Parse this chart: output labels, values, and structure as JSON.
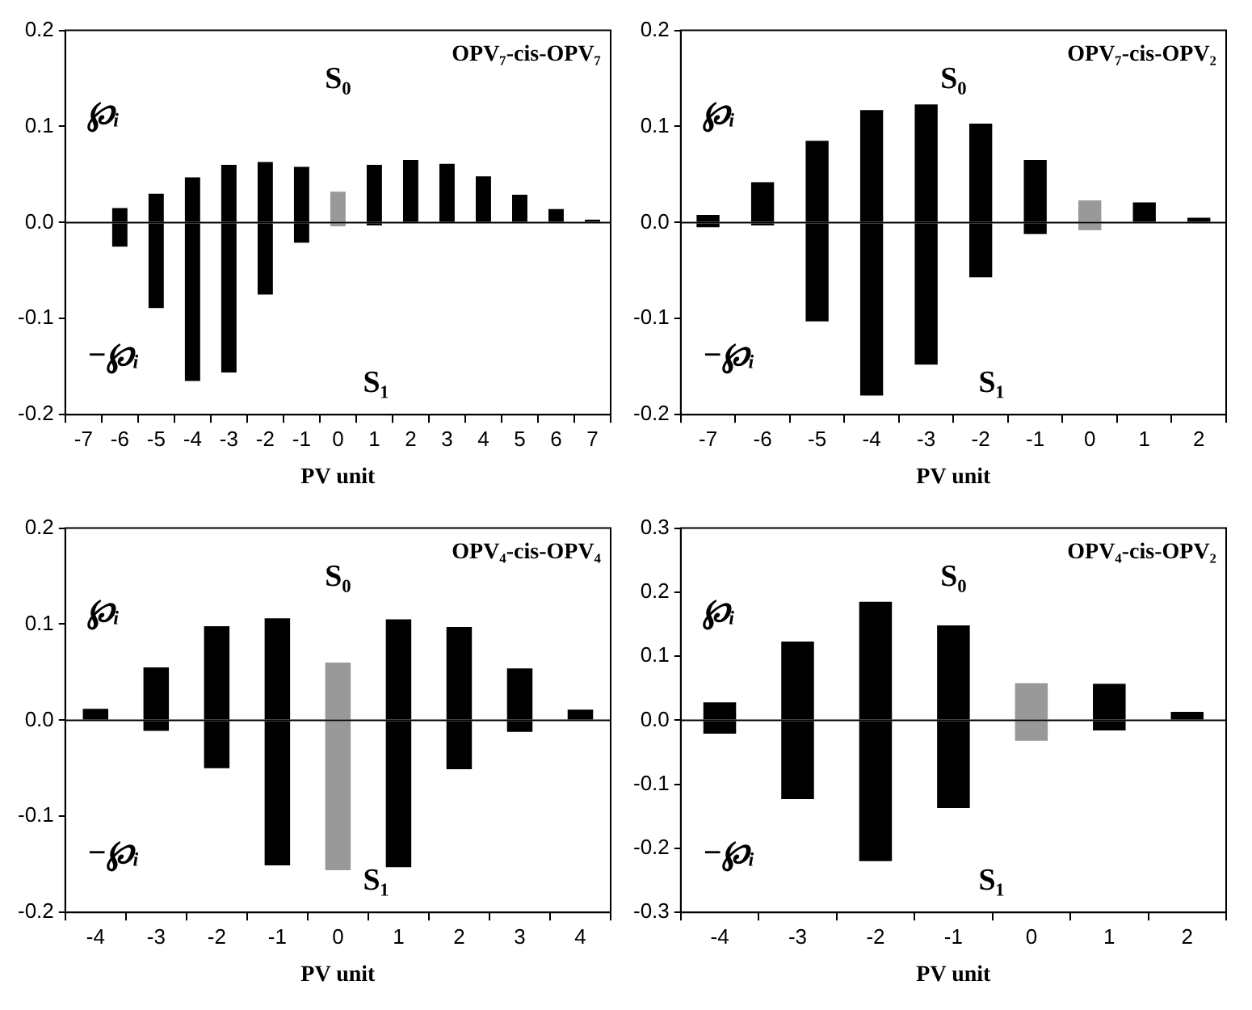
{
  "chart_data": [
    {
      "type": "bar",
      "title": "OPV₇-cis-OPV₇",
      "xlabel": "PV unit",
      "stacked": true,
      "categories": [
        "-7",
        "-6",
        "-5",
        "-4",
        "-3",
        "-2",
        "-1",
        "0",
        "1",
        "2",
        "3",
        "4",
        "5",
        "6",
        "7"
      ],
      "series": [
        {
          "colors": [
            "#000000",
            "#000000",
            "#000000",
            "#000000",
            "#000000",
            "#000000",
            "#000000",
            "#999999",
            "#000000",
            "#000000",
            "#000000",
            "#000000",
            "#000000",
            "#000000",
            "#000000"
          ],
          "values": [
            null,
            0.015,
            0.03,
            0.047,
            0.06,
            0.063,
            0.058,
            0.032,
            0.06,
            0.065,
            0.061,
            0.048,
            0.029,
            0.014,
            0.003
          ]
        },
        {
          "colors": [
            "#000000",
            "#000000",
            "#000000",
            "#000000",
            "#000000",
            "#000000",
            "#000000",
            "#999999",
            "#000000",
            "#000000",
            "#000000",
            "#000000",
            "#000000",
            "#000000",
            "#000000"
          ],
          "values": [
            null,
            -0.025,
            -0.089,
            -0.165,
            -0.156,
            -0.075,
            -0.021,
            -0.004,
            -0.003,
            null,
            0,
            0,
            0,
            0,
            0
          ]
        }
      ],
      "ylim": [
        -0.2,
        0.2
      ],
      "yticks": [
        {
          "value": -0.2,
          "label": "-0.2"
        },
        {
          "value": -0.1,
          "label": "-0.1"
        },
        {
          "value": 0,
          "label": "0.0"
        },
        {
          "value": 0.1,
          "label": "0.1"
        },
        {
          "value": 0.2,
          "label": "0.2"
        }
      ],
      "ref_lines": [
        {
          "axis": "y",
          "value": 0,
          "color": "#000000"
        }
      ],
      "annotations": [
        "℘ᵢ",
        "−℘ᵢ",
        "S₀",
        "S₁"
      ]
    },
    {
      "type": "bar",
      "title": "OPV₇-cis-OPV₂",
      "xlabel": "PV unit",
      "stacked": true,
      "categories": [
        "-7",
        "-6",
        "-5",
        "-4",
        "-3",
        "-2",
        "-1",
        "0",
        "1",
        "2"
      ],
      "series": [
        {
          "colors": [
            "#000000",
            "#000000",
            "#000000",
            "#000000",
            "#000000",
            "#000000",
            "#000000",
            "#999999",
            "#000000",
            "#000000"
          ],
          "values": [
            0.008,
            0.042,
            0.085,
            0.117,
            0.123,
            0.103,
            0.065,
            0.023,
            0.021,
            0.005
          ]
        },
        {
          "colors": [
            "#000000",
            "#000000",
            "#000000",
            "#000000",
            "#000000",
            "#000000",
            "#000000",
            "#999999",
            "#000000",
            "#000000"
          ],
          "values": [
            -0.005,
            -0.003,
            -0.103,
            -0.18,
            -0.148,
            -0.057,
            -0.012,
            -0.008,
            0,
            0
          ]
        }
      ],
      "ylim": [
        -0.2,
        0.2
      ],
      "yticks": [
        {
          "value": -0.2,
          "label": "-0.2"
        },
        {
          "value": -0.1,
          "label": "-0.1"
        },
        {
          "value": 0,
          "label": "0.0"
        },
        {
          "value": 0.1,
          "label": "0.1"
        },
        {
          "value": 0.2,
          "label": "0.2"
        }
      ],
      "ref_lines": [
        {
          "axis": "y",
          "value": 0,
          "color": "#000000"
        }
      ],
      "annotations": [
        "℘ᵢ",
        "−℘ᵢ",
        "S₀",
        "S₁"
      ]
    },
    {
      "type": "bar",
      "title": "OPV₄-cis-OPV₄",
      "xlabel": "PV unit",
      "stacked": true,
      "categories": [
        "-4",
        "-3",
        "-2",
        "-1",
        "0",
        "1",
        "2",
        "3",
        "4"
      ],
      "series": [
        {
          "colors": [
            "#000000",
            "#000000",
            "#000000",
            "#000000",
            "#999999",
            "#000000",
            "#000000",
            "#000000",
            "#000000"
          ],
          "values": [
            0.012,
            0.055,
            0.098,
            0.106,
            0.06,
            0.105,
            0.097,
            0.054,
            0.011
          ]
        },
        {
          "colors": [
            "#000000",
            "#000000",
            "#000000",
            "#000000",
            "#999999",
            "#000000",
            "#000000",
            "#000000",
            "#000000"
          ],
          "values": [
            0,
            -0.011,
            -0.05,
            -0.151,
            -0.156,
            -0.153,
            -0.051,
            -0.012,
            0
          ]
        }
      ],
      "ylim": [
        -0.2,
        0.2
      ],
      "yticks": [
        {
          "value": -0.2,
          "label": "-0.2"
        },
        {
          "value": -0.1,
          "label": "-0.1"
        },
        {
          "value": 0,
          "label": "0.0"
        },
        {
          "value": 0.1,
          "label": "0.1"
        },
        {
          "value": 0.2,
          "label": "0.2"
        }
      ],
      "ref_lines": [
        {
          "axis": "y",
          "value": 0,
          "color": "#000000"
        }
      ],
      "annotations": [
        "℘ᵢ",
        "−℘ᵢ",
        "S₀",
        "S₁"
      ]
    },
    {
      "type": "bar",
      "title": "OPV₄-cis-OPV₂",
      "xlabel": "PV unit",
      "stacked": true,
      "categories": [
        "-4",
        "-3",
        "-2",
        "-1",
        "0",
        "1",
        "2"
      ],
      "series": [
        {
          "colors": [
            "#000000",
            "#000000",
            "#000000",
            "#000000",
            "#999999",
            "#000000",
            "#000000"
          ],
          "values": [
            0.028,
            0.123,
            0.185,
            0.148,
            0.058,
            0.057,
            0.013
          ]
        },
        {
          "colors": [
            "#000000",
            "#000000",
            "#000000",
            "#000000",
            "#999999",
            "#000000",
            "#000000"
          ],
          "values": [
            -0.021,
            -0.123,
            -0.22,
            -0.137,
            -0.032,
            -0.016,
            0
          ]
        }
      ],
      "ylim": [
        -0.3,
        0.3
      ],
      "yticks": [
        {
          "value": -0.3,
          "label": "-0.3"
        },
        {
          "value": -0.2,
          "label": "-0.2"
        },
        {
          "value": -0.1,
          "label": "-0.1"
        },
        {
          "value": 0,
          "label": "0.0"
        },
        {
          "value": 0.1,
          "label": "0.1"
        },
        {
          "value": 0.2,
          "label": "0.2"
        },
        {
          "value": 0.3,
          "label": "0.3"
        }
      ],
      "ref_lines": [
        {
          "axis": "y",
          "value": 0,
          "color": "#000000"
        }
      ],
      "annotations": [
        "℘ᵢ",
        "−℘ᵢ",
        "S₀",
        "S₁"
      ]
    }
  ]
}
